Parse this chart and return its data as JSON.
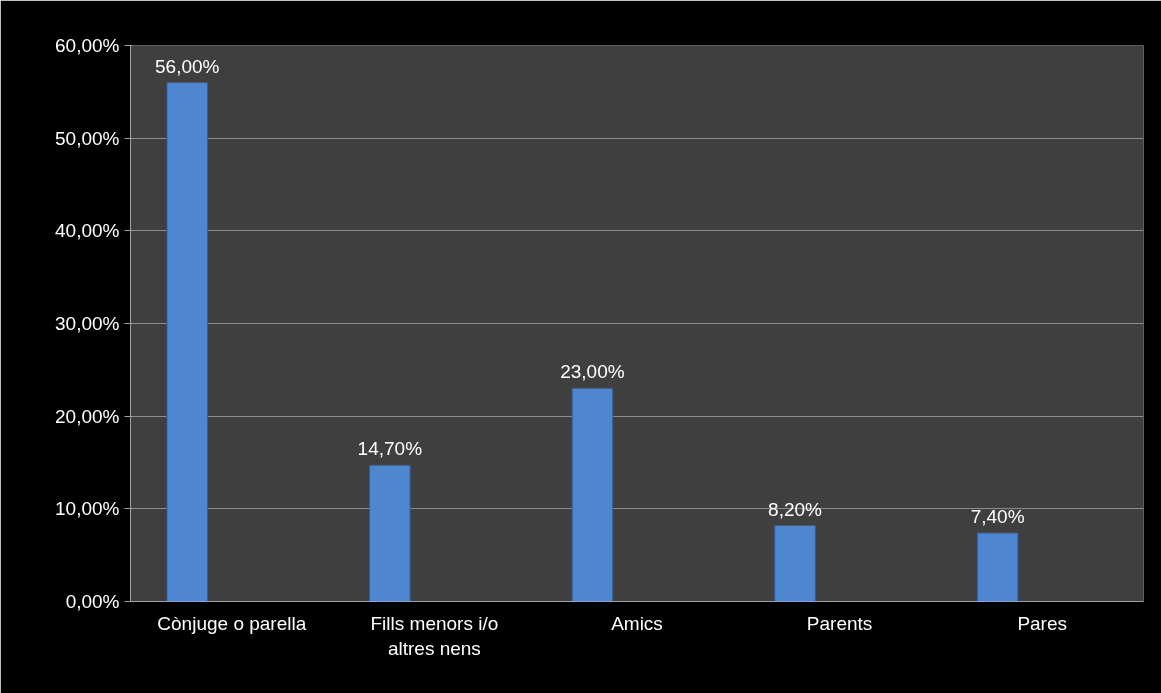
{
  "chart_data": {
    "type": "bar",
    "categories": [
      "Cònjuge o parella",
      "Fills menors i/o altres nens",
      "Amics",
      "Parents",
      "Pares"
    ],
    "values": [
      56.0,
      14.7,
      23.0,
      8.2,
      7.4
    ],
    "value_labels": [
      "56,00%",
      "14,70%",
      "23,00%",
      "8,20%",
      "7,40%"
    ],
    "color": "#4f86d0",
    "ylim": [
      0,
      60
    ],
    "yticks": [
      {
        "value": 0,
        "label": "0,00%"
      },
      {
        "value": 10,
        "label": "10,00%"
      },
      {
        "value": 20,
        "label": "20,00%"
      },
      {
        "value": 30,
        "label": "30,00%"
      },
      {
        "value": 40,
        "label": "40,00%"
      },
      {
        "value": 50,
        "label": "50,00%"
      },
      {
        "value": 60,
        "label": "60,00%"
      }
    ],
    "grid": "y"
  }
}
